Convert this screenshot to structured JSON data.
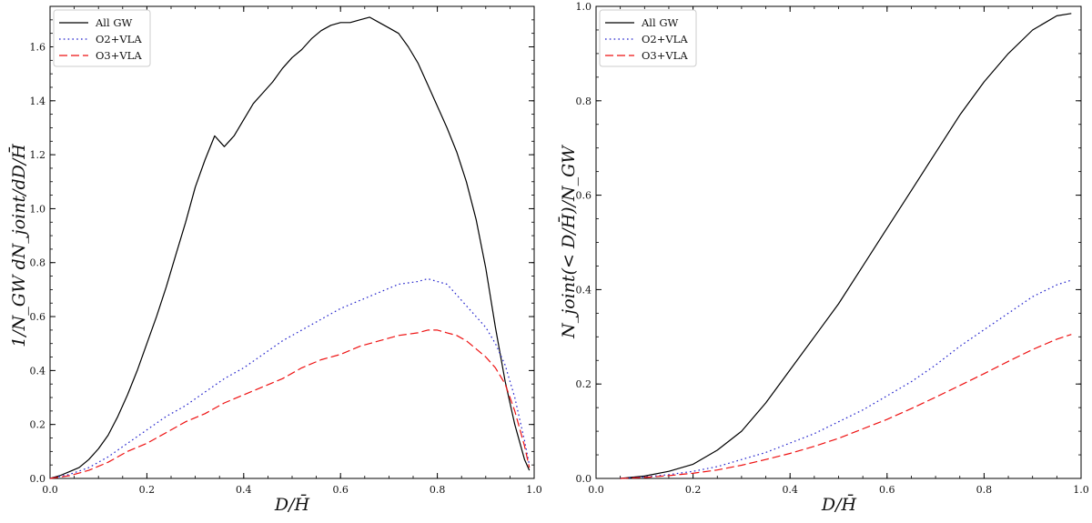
{
  "chart_data": [
    {
      "type": "line",
      "title": "",
      "xlabel": "D/H̄",
      "ylabel": "1/N_GW dN_joint/dD/H̄",
      "xlim": [
        0.0,
        1.0
      ],
      "ylim": [
        0.0,
        1.75
      ],
      "xticks": [
        0.0,
        0.2,
        0.4,
        0.6,
        0.8,
        1.0
      ],
      "xtick_labels": [
        "0.0",
        "0.2",
        "0.4",
        "0.6",
        "0.8",
        "1.0"
      ],
      "yticks": [
        0.0,
        0.2,
        0.4,
        0.6,
        0.8,
        1.0,
        1.2,
        1.4,
        1.6
      ],
      "ytick_labels": [
        "0.0",
        "0.2",
        "0.4",
        "0.6",
        "0.8",
        "1.0",
        "1.2",
        "1.4",
        "1.6"
      ],
      "legend_position": "top-left",
      "series": [
        {
          "name": "All GW",
          "color": "#000000",
          "style": "solid",
          "x": [
            0.0,
            0.02,
            0.04,
            0.06,
            0.08,
            0.1,
            0.12,
            0.14,
            0.16,
            0.18,
            0.2,
            0.22,
            0.24,
            0.26,
            0.28,
            0.3,
            0.32,
            0.34,
            0.35,
            0.36,
            0.38,
            0.4,
            0.42,
            0.44,
            0.46,
            0.48,
            0.5,
            0.52,
            0.54,
            0.56,
            0.58,
            0.6,
            0.62,
            0.64,
            0.66,
            0.68,
            0.7,
            0.72,
            0.74,
            0.76,
            0.78,
            0.8,
            0.82,
            0.84,
            0.86,
            0.88,
            0.9,
            0.92,
            0.94,
            0.96,
            0.98,
            0.99
          ],
          "y": [
            0.0,
            0.01,
            0.025,
            0.04,
            0.07,
            0.11,
            0.16,
            0.23,
            0.31,
            0.4,
            0.5,
            0.6,
            0.71,
            0.83,
            0.95,
            1.08,
            1.18,
            1.27,
            1.25,
            1.23,
            1.27,
            1.33,
            1.39,
            1.43,
            1.47,
            1.52,
            1.56,
            1.59,
            1.63,
            1.66,
            1.68,
            1.69,
            1.69,
            1.7,
            1.71,
            1.69,
            1.67,
            1.65,
            1.6,
            1.54,
            1.46,
            1.38,
            1.3,
            1.21,
            1.1,
            0.96,
            0.78,
            0.56,
            0.36,
            0.2,
            0.07,
            0.03
          ]
        },
        {
          "name": "O2+VLA",
          "color": "#2222cc",
          "style": "dotted",
          "x": [
            0.0,
            0.04,
            0.08,
            0.12,
            0.16,
            0.2,
            0.24,
            0.28,
            0.32,
            0.36,
            0.4,
            0.44,
            0.48,
            0.52,
            0.56,
            0.6,
            0.64,
            0.68,
            0.72,
            0.76,
            0.78,
            0.8,
            0.82,
            0.84,
            0.86,
            0.88,
            0.9,
            0.92,
            0.94,
            0.96,
            0.98,
            0.99
          ],
          "y": [
            0.0,
            0.015,
            0.04,
            0.08,
            0.13,
            0.18,
            0.23,
            0.27,
            0.32,
            0.37,
            0.41,
            0.46,
            0.51,
            0.55,
            0.59,
            0.63,
            0.66,
            0.69,
            0.72,
            0.73,
            0.74,
            0.73,
            0.72,
            0.68,
            0.64,
            0.6,
            0.56,
            0.5,
            0.42,
            0.3,
            0.14,
            0.05
          ]
        },
        {
          "name": "O3+VLA",
          "color": "#ee1111",
          "style": "dashed",
          "x": [
            0.0,
            0.04,
            0.08,
            0.12,
            0.16,
            0.2,
            0.24,
            0.28,
            0.32,
            0.36,
            0.4,
            0.44,
            0.48,
            0.52,
            0.56,
            0.6,
            0.64,
            0.68,
            0.72,
            0.76,
            0.78,
            0.8,
            0.82,
            0.84,
            0.86,
            0.88,
            0.9,
            0.92,
            0.94,
            0.96,
            0.98,
            0.99
          ],
          "y": [
            0.0,
            0.01,
            0.03,
            0.06,
            0.1,
            0.13,
            0.17,
            0.21,
            0.24,
            0.28,
            0.31,
            0.34,
            0.37,
            0.41,
            0.44,
            0.46,
            0.49,
            0.51,
            0.53,
            0.54,
            0.55,
            0.55,
            0.54,
            0.53,
            0.51,
            0.48,
            0.45,
            0.41,
            0.35,
            0.25,
            0.12,
            0.04
          ]
        }
      ]
    },
    {
      "type": "line",
      "title": "",
      "xlabel": "D/H̄",
      "ylabel": "N_joint(< D/H̄)/N_GW",
      "xlim": [
        0.0,
        1.0
      ],
      "ylim": [
        0.0,
        1.0
      ],
      "xticks": [
        0.0,
        0.2,
        0.4,
        0.6,
        0.8,
        1.0
      ],
      "xtick_labels": [
        "0.0",
        "0.2",
        "0.4",
        "0.6",
        "0.8",
        "1.0"
      ],
      "yticks": [
        0.0,
        0.2,
        0.4,
        0.6,
        0.8,
        1.0
      ],
      "ytick_labels": [
        "0.0",
        "0.2",
        "0.4",
        "0.6",
        "0.8",
        "1.0"
      ],
      "legend_position": "top-left",
      "series": [
        {
          "name": "All GW",
          "color": "#000000",
          "style": "solid",
          "x": [
            0.05,
            0.1,
            0.15,
            0.2,
            0.25,
            0.3,
            0.35,
            0.4,
            0.45,
            0.5,
            0.55,
            0.6,
            0.65,
            0.7,
            0.75,
            0.8,
            0.85,
            0.9,
            0.95,
            0.98
          ],
          "y": [
            0.0,
            0.005,
            0.015,
            0.03,
            0.06,
            0.1,
            0.16,
            0.23,
            0.3,
            0.37,
            0.45,
            0.53,
            0.61,
            0.69,
            0.77,
            0.84,
            0.9,
            0.95,
            0.98,
            0.985
          ]
        },
        {
          "name": "O2+VLA",
          "color": "#2222cc",
          "style": "dotted",
          "x": [
            0.05,
            0.1,
            0.15,
            0.2,
            0.25,
            0.3,
            0.35,
            0.4,
            0.45,
            0.5,
            0.55,
            0.6,
            0.65,
            0.7,
            0.75,
            0.8,
            0.85,
            0.9,
            0.95,
            0.98
          ],
          "y": [
            0.0,
            0.003,
            0.008,
            0.015,
            0.025,
            0.04,
            0.055,
            0.075,
            0.095,
            0.12,
            0.145,
            0.175,
            0.205,
            0.24,
            0.28,
            0.315,
            0.35,
            0.385,
            0.41,
            0.42
          ]
        },
        {
          "name": "O3+VLA",
          "color": "#ee1111",
          "style": "dashed",
          "x": [
            0.05,
            0.1,
            0.15,
            0.2,
            0.25,
            0.3,
            0.35,
            0.4,
            0.45,
            0.5,
            0.55,
            0.6,
            0.65,
            0.7,
            0.75,
            0.8,
            0.85,
            0.9,
            0.95,
            0.98
          ],
          "y": [
            0.0,
            0.002,
            0.006,
            0.011,
            0.018,
            0.028,
            0.04,
            0.053,
            0.068,
            0.085,
            0.105,
            0.125,
            0.148,
            0.172,
            0.197,
            0.222,
            0.248,
            0.273,
            0.295,
            0.305
          ]
        }
      ]
    }
  ]
}
